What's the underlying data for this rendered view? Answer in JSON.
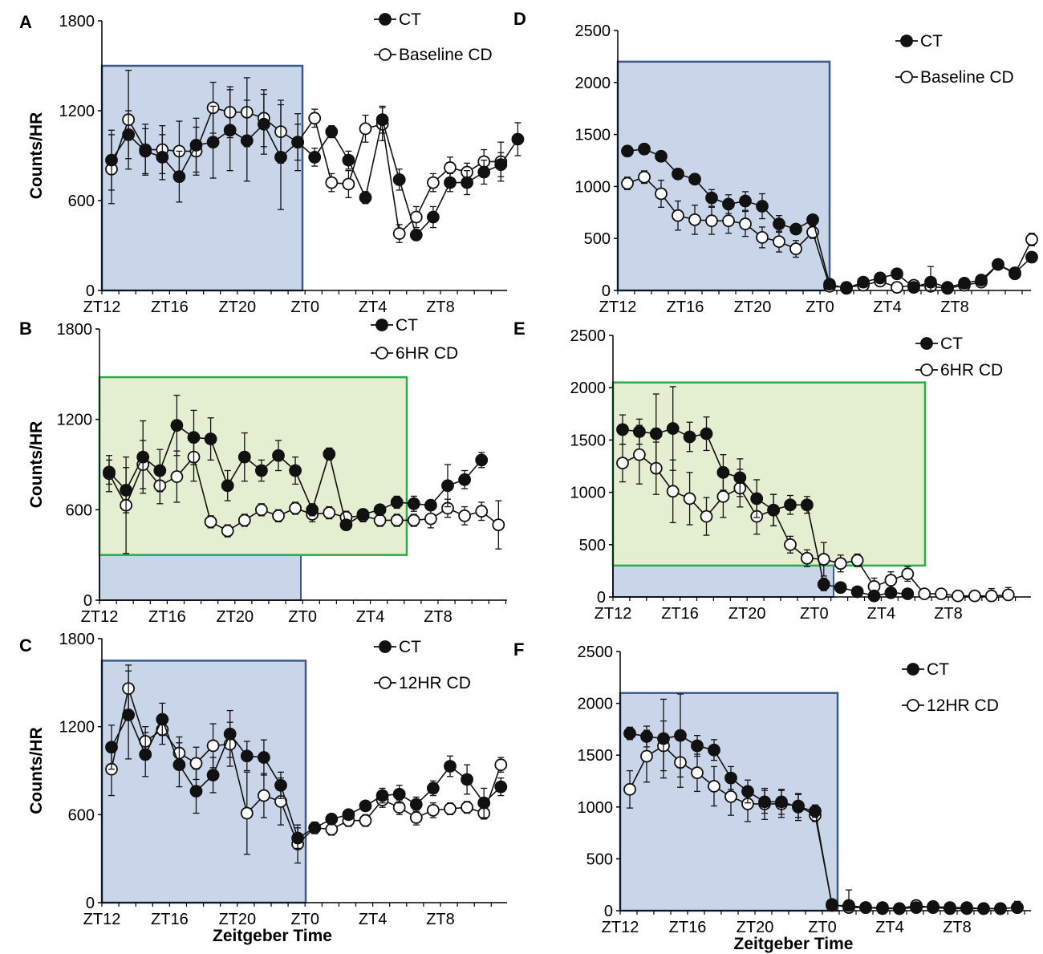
{
  "chart_data": [
    {
      "panel": "A",
      "type": "line",
      "ylabel": "Counts/HR",
      "xlabel": "",
      "ylim": [
        0,
        1800
      ],
      "yticks": [
        "0",
        "600",
        "1200",
        "1800"
      ],
      "xticks": [
        "ZT12",
        "ZT16",
        "ZT20",
        "ZT0",
        "ZT4",
        "ZT8"
      ],
      "dark_phase": "ZT12-ZT0",
      "series": [
        {
          "name": "CT",
          "filled": true,
          "values": [
            870,
            1040,
            930,
            890,
            760,
            970,
            990,
            1070,
            1000,
            1110,
            890,
            990,
            890,
            1060,
            870,
            620,
            1140,
            740,
            370,
            490,
            720,
            720,
            790,
            840,
            1010
          ],
          "errors": [
            200,
            160,
            150,
            150,
            170,
            180,
            240,
            270,
            270,
            200,
            350,
            190,
            60,
            40,
            60,
            40,
            90,
            70,
            30,
            70,
            60,
            80,
            80,
            80,
            110
          ]
        },
        {
          "name": "Baseline CD",
          "filled": false,
          "values": [
            810,
            1140,
            940,
            940,
            930,
            930,
            1220,
            1190,
            1190,
            1150,
            1060,
            990,
            1150,
            720,
            710,
            1080,
            1110,
            380,
            490,
            720,
            820,
            790,
            860,
            860
          ],
          "errors": [
            230,
            330,
            170,
            160,
            200,
            160,
            170,
            170,
            230,
            190,
            210,
            120,
            60,
            60,
            90,
            90,
            110,
            60,
            70,
            60,
            70,
            60,
            80,
            130
          ]
        }
      ]
    },
    {
      "panel": "B",
      "type": "line",
      "ylabel": "Counts/HR",
      "xlabel": "",
      "ylim": [
        0,
        1800
      ],
      "yticks": [
        "0",
        "600",
        "1200",
        "1800"
      ],
      "xticks": [
        "ZT12",
        "ZT16",
        "ZT20",
        "ZT0",
        "ZT4",
        "ZT8"
      ],
      "dark_phase": "ZT12-ZT0",
      "cd_window": "ZT12-ZT6",
      "series": [
        {
          "name": "CT",
          "filled": true,
          "values": [
            850,
            730,
            950,
            860,
            1160,
            1080,
            1070,
            760,
            950,
            860,
            960,
            860,
            600,
            970,
            500,
            570,
            600,
            650,
            640,
            630,
            760,
            800,
            930
          ],
          "errors": [
            80,
            150,
            240,
            140,
            200,
            180,
            140,
            100,
            160,
            70,
            100,
            90,
            40,
            40,
            30,
            30,
            30,
            40,
            50,
            30,
            140,
            60,
            50
          ]
        },
        {
          "name": "6HR CD",
          "filled": false,
          "values": [
            840,
            630,
            900,
            760,
            820,
            950,
            520,
            460,
            530,
            600,
            560,
            610,
            570,
            580,
            550,
            560,
            530,
            530,
            530,
            540,
            610,
            560,
            590,
            500
          ],
          "errors": [
            120,
            320,
            160,
            120,
            170,
            160,
            40,
            40,
            40,
            40,
            40,
            40,
            50,
            40,
            40,
            40,
            40,
            40,
            40,
            60,
            60,
            60,
            60,
            160
          ]
        }
      ]
    },
    {
      "panel": "C",
      "type": "line",
      "ylabel": "Counts/HR",
      "xlabel": "Zeitgeber Time",
      "ylim": [
        0,
        1800
      ],
      "yticks": [
        "0",
        "600",
        "1200",
        "1800"
      ],
      "xticks": [
        "ZT12",
        "ZT16",
        "ZT20",
        "ZT0",
        "ZT4",
        "ZT8"
      ],
      "dark_phase": "ZT12-ZT0",
      "series": [
        {
          "name": "CT",
          "filled": true,
          "values": [
            1060,
            1280,
            1010,
            1250,
            940,
            760,
            870,
            1150,
            1000,
            990,
            800,
            440,
            510,
            570,
            600,
            660,
            730,
            740,
            670,
            780,
            930,
            840,
            680,
            790
          ],
          "errors": [
            150,
            300,
            150,
            110,
            150,
            150,
            120,
            160,
            100,
            120,
            90,
            70,
            20,
            30,
            30,
            30,
            50,
            60,
            50,
            50,
            70,
            100,
            100,
            60
          ]
        },
        {
          "name": "12HR CD",
          "filled": false,
          "values": [
            910,
            1460,
            1100,
            1180,
            1020,
            950,
            1070,
            1080,
            610,
            730,
            690,
            400,
            510,
            500,
            560,
            560,
            700,
            650,
            580,
            630,
            640,
            650,
            610,
            940
          ],
          "errors": [
            180,
            160,
            100,
            100,
            110,
            110,
            150,
            150,
            280,
            150,
            160,
            130,
            40,
            40,
            40,
            40,
            50,
            50,
            50,
            50,
            40,
            40,
            40,
            50
          ]
        }
      ]
    },
    {
      "panel": "D",
      "type": "line",
      "ylabel": "",
      "xlabel": "",
      "ylim": [
        0,
        2500
      ],
      "yticks": [
        "0",
        "500",
        "1000",
        "1500",
        "2000",
        "2500"
      ],
      "xticks": [
        "ZT12",
        "ZT16",
        "ZT20",
        "ZT0",
        "ZT4",
        "ZT8"
      ],
      "dark_phase": "ZT12-ZT0",
      "series": [
        {
          "name": "CT",
          "filled": true,
          "values": [
            1340,
            1360,
            1290,
            1120,
            1070,
            890,
            830,
            860,
            810,
            640,
            590,
            680,
            60,
            20,
            80,
            120,
            160,
            30,
            80,
            30,
            70,
            100,
            250,
            170,
            320
          ],
          "errors": [
            50,
            50,
            50,
            50,
            50,
            80,
            90,
            90,
            120,
            80,
            40,
            40,
            30,
            20,
            30,
            50,
            30,
            30,
            150,
            30,
            30,
            30,
            30,
            30,
            30
          ]
        },
        {
          "name": "Baseline CD",
          "filled": false,
          "values": [
            1030,
            1090,
            930,
            720,
            680,
            670,
            670,
            640,
            510,
            470,
            400,
            560,
            40,
            30,
            50,
            90,
            30,
            50,
            40,
            20,
            50,
            80,
            250,
            160,
            490
          ],
          "errors": [
            60,
            60,
            130,
            140,
            140,
            130,
            120,
            120,
            100,
            100,
            80,
            60,
            30,
            20,
            30,
            50,
            30,
            30,
            40,
            30,
            30,
            30,
            30,
            40,
            60
          ]
        }
      ]
    },
    {
      "panel": "E",
      "type": "line",
      "ylabel": "",
      "xlabel": "",
      "ylim": [
        0,
        2500
      ],
      "yticks": [
        "0",
        "500",
        "1000",
        "1500",
        "2000",
        "2500"
      ],
      "xticks": [
        "ZT12",
        "ZT16",
        "ZT20",
        "ZT0",
        "ZT4",
        "ZT8"
      ],
      "dark_phase": "ZT12-ZT0",
      "cd_window": "ZT12-ZT6",
      "series": [
        {
          "name": "CT",
          "filled": true,
          "values": [
            1600,
            1580,
            1560,
            1610,
            1530,
            1560,
            1190,
            1140,
            940,
            830,
            880,
            880,
            120,
            90,
            50,
            10,
            40,
            30
          ],
          "errors": [
            140,
            120,
            380,
            400,
            140,
            160,
            170,
            180,
            180,
            150,
            90,
            80,
            60,
            40,
            30,
            20,
            30,
            30
          ]
        },
        {
          "name": "6HR CD",
          "filled": false,
          "values": [
            1280,
            1360,
            1230,
            1010,
            940,
            770,
            960,
            1040,
            770,
            830,
            500,
            370,
            360,
            320,
            350,
            100,
            160,
            220,
            30,
            30,
            10,
            10,
            10,
            20
          ],
          "errors": [
            180,
            280,
            250,
            300,
            250,
            180,
            200,
            180,
            170,
            150,
            80,
            80,
            160,
            80,
            60,
            80,
            80,
            70,
            30,
            30,
            30,
            30,
            70,
            70
          ]
        }
      ]
    },
    {
      "panel": "F",
      "type": "line",
      "ylabel": "",
      "xlabel": "Zeitgeber Time",
      "ylim": [
        0,
        2500
      ],
      "yticks": [
        "0",
        "500",
        "1000",
        "1500",
        "2000",
        "2500"
      ],
      "xticks": [
        "ZT12",
        "ZT16",
        "ZT20",
        "ZT0",
        "ZT4",
        "ZT8"
      ],
      "dark_phase": "ZT12-ZT0",
      "series": [
        {
          "name": "CT",
          "filled": true,
          "values": [
            1710,
            1680,
            1660,
            1690,
            1590,
            1550,
            1280,
            1150,
            1050,
            1050,
            1000,
            960,
            50,
            50,
            30,
            20,
            20,
            30,
            40,
            30,
            30,
            20,
            20,
            30
          ],
          "errors": [
            60,
            100,
            380,
            400,
            100,
            100,
            110,
            110,
            110,
            120,
            130,
            60,
            30,
            150,
            30,
            30,
            30,
            30,
            30,
            30,
            30,
            30,
            30,
            30
          ]
        },
        {
          "name": "12HR CD",
          "filled": false,
          "values": [
            1170,
            1490,
            1590,
            1430,
            1330,
            1200,
            1100,
            1030,
            1030,
            1030,
            1010,
            920,
            60,
            30,
            30,
            30,
            20,
            50,
            30,
            20,
            20,
            20,
            20,
            30
          ],
          "errors": [
            180,
            250,
            240,
            240,
            180,
            190,
            180,
            170,
            150,
            130,
            110,
            60,
            40,
            70,
            30,
            30,
            30,
            30,
            30,
            30,
            30,
            30,
            30,
            60
          ]
        }
      ]
    }
  ]
}
